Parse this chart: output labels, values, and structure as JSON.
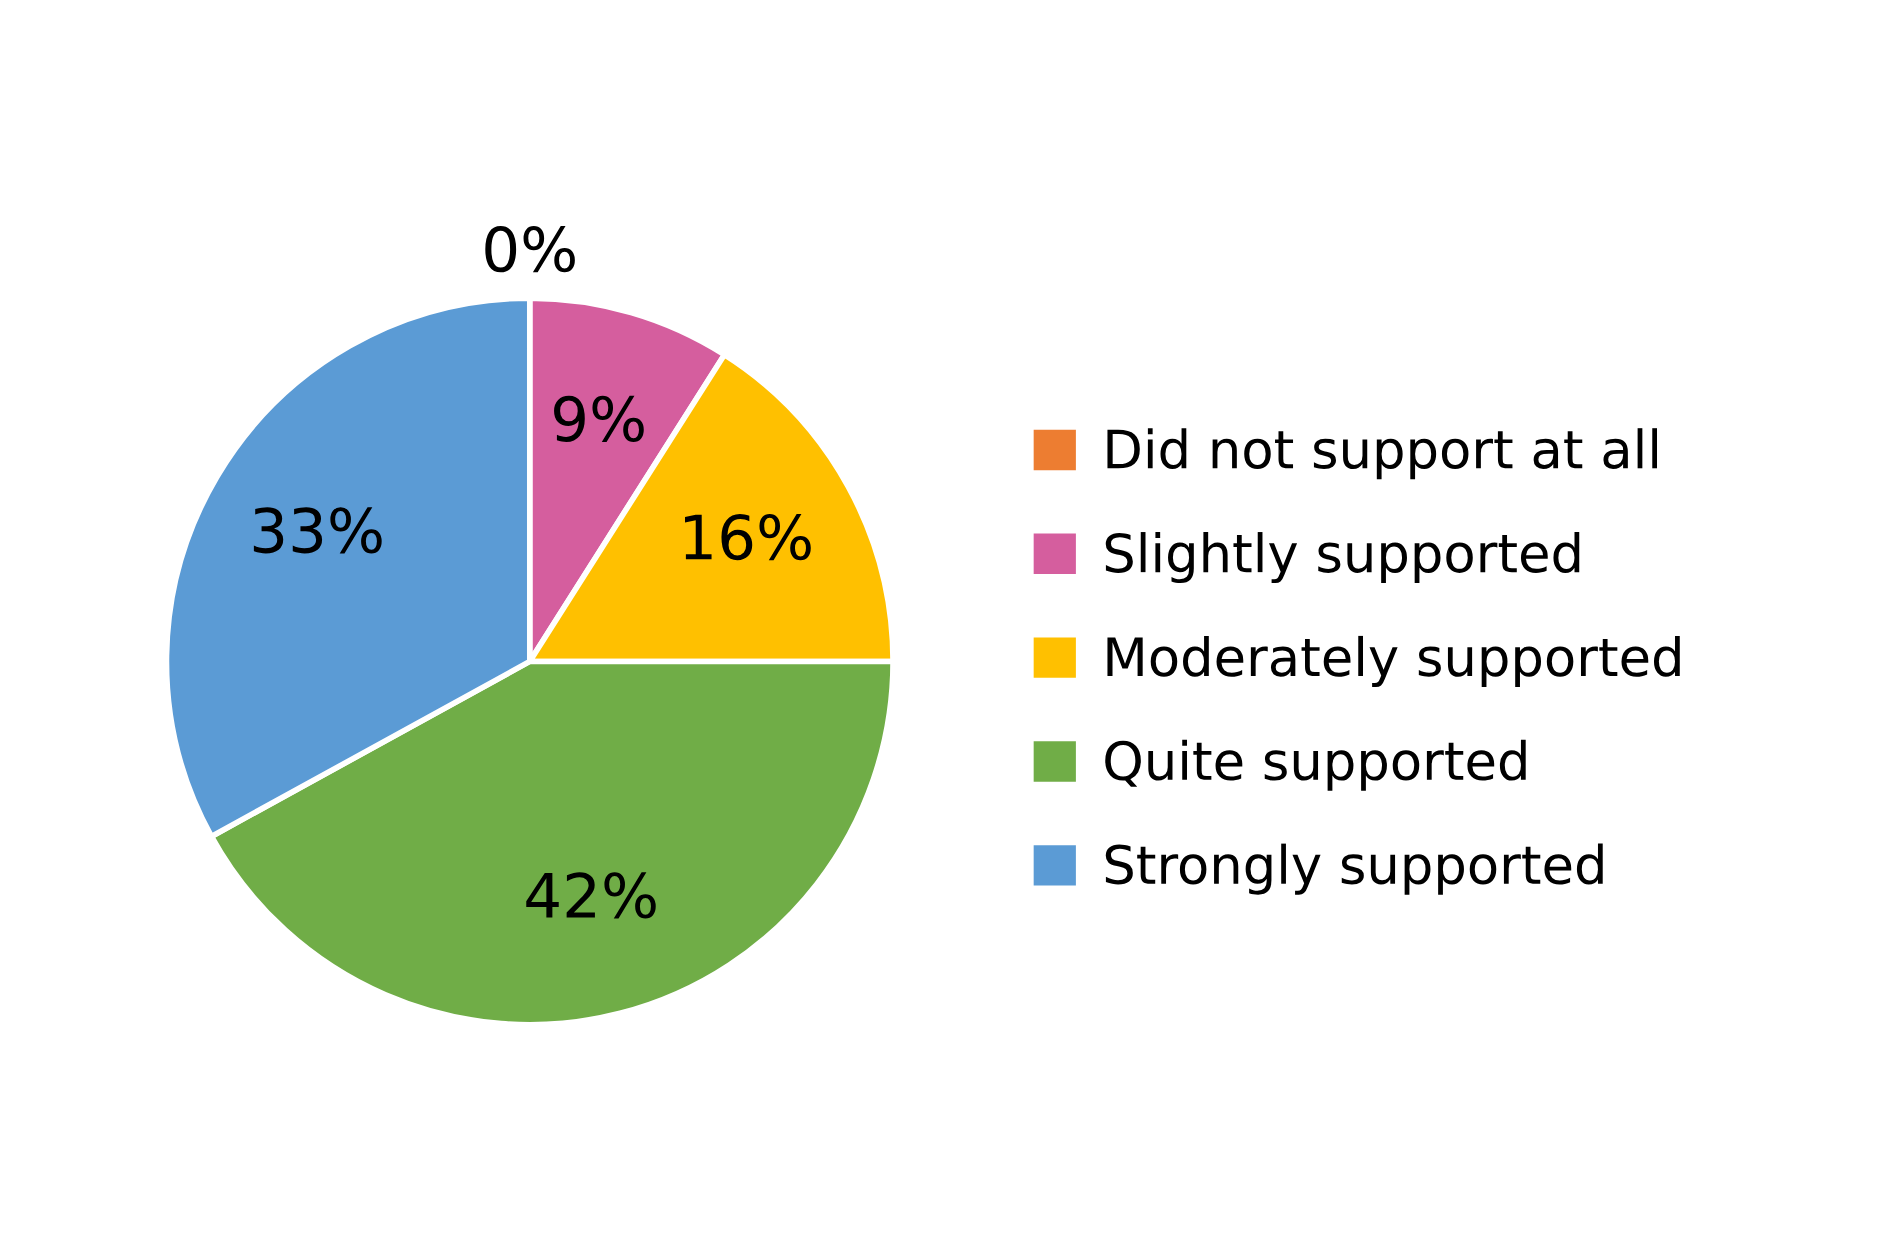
{
  "chart_data": {
    "type": "pie",
    "categories": [
      "Did not support at all",
      "Slightly supported",
      "Moderately supported",
      "Quite supported",
      "Strongly supported"
    ],
    "values": [
      0,
      9,
      16,
      42,
      33
    ],
    "value_labels": [
      "0%",
      "9%",
      "16%",
      "42%",
      "33%"
    ],
    "colors": [
      "#ed7d31",
      "#d55e9e",
      "#ffc000",
      "#70ad47",
      "#5b9bd5"
    ],
    "legend": "right"
  }
}
